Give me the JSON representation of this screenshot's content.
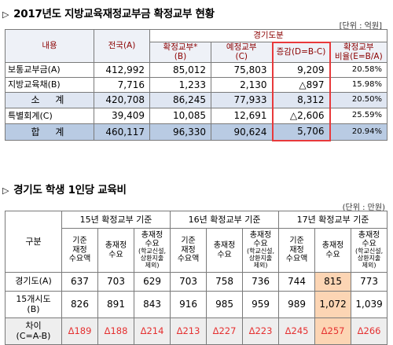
{
  "section1": {
    "title": "2017년도 지방교육재정교부금 확정교부 현황",
    "unit": "[단위 : 억원]",
    "headers": {
      "item": "내용",
      "nation": "전국(A)",
      "gyeonggi_group": "경기도분",
      "confirmed_line1": "확정교부*",
      "confirmed_line2": "(B)",
      "estimated_line1": "예정교부",
      "estimated_line2": "(C)",
      "change": "증감(D=B-C)",
      "ratio_line1": "확정교부",
      "ratio_line2": "비율(E=B/A)"
    },
    "rows": [
      {
        "label": "보통교부금(A)",
        "nation": "412,992",
        "confirmed": "85,012",
        "estimated": "75,803",
        "change": "9,209",
        "ratio": "20.58%"
      },
      {
        "label": "지방교육채(B)",
        "nation": "7,716",
        "confirmed": "1,233",
        "estimated": "2,130",
        "change": "△897",
        "ratio": "15.98%"
      },
      {
        "label": "소 계",
        "nation": "420,708",
        "confirmed": "86,245",
        "estimated": "77,933",
        "change": "8,312",
        "ratio": "20.50%"
      },
      {
        "label": "특별회계(C)",
        "nation": "39,409",
        "confirmed": "10,085",
        "estimated": "12,691",
        "change": "△2,606",
        "ratio": "25.59%"
      },
      {
        "label": "합 계",
        "nation": "460,117",
        "confirmed": "96,330",
        "estimated": "90,624",
        "change": "5,706",
        "ratio": "20.94%"
      }
    ]
  },
  "section2": {
    "title": "경기도 학생 1인당 교육비",
    "unit": "(단위 : 만원)",
    "headers": {
      "category": "구분",
      "groups": [
        "15년 확정교부 기준",
        "16년 확정교부 기준",
        "17년 확정교부 기준"
      ],
      "col_base": [
        "기준",
        "재정",
        "수요액"
      ],
      "col_total": [
        "총재정",
        "수요"
      ],
      "col_total_excl": [
        "총재정",
        "수요"
      ],
      "col_total_excl_note": [
        "(학교신설,",
        "상환지출",
        "제외)"
      ]
    },
    "rows": [
      {
        "label_line1": "경기도(A)",
        "label_line2": "",
        "values": [
          "637",
          "703",
          "629",
          "703",
          "758",
          "736",
          "744",
          "815",
          "773"
        ]
      },
      {
        "label_line1": "15개시도",
        "label_line2": "(B)",
        "values": [
          "826",
          "891",
          "843",
          "916",
          "985",
          "959",
          "989",
          "1,072",
          "1,039"
        ]
      },
      {
        "label_line1": "차이",
        "label_line2": "(C=A-B)",
        "values": [
          "Δ189",
          "Δ188",
          "Δ214",
          "Δ213",
          "Δ227",
          "Δ223",
          "Δ245",
          "Δ257",
          "Δ266"
        ]
      }
    ]
  },
  "colors": {
    "header_text": "#8b0000",
    "highlight_border": "#e8393b",
    "subtotal_bg": "#dfe6f2",
    "total_bg": "#b9cbe3",
    "negative_text": "#e53030",
    "highlight_cell_bg": "#fcd5b4"
  },
  "icons": {
    "bullet": "triangle-right-icon"
  }
}
